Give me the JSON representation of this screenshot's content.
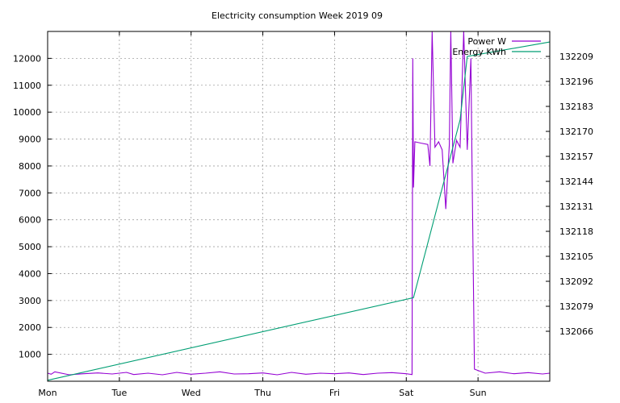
{
  "chart_data": {
    "type": "line",
    "title": "Electricity consumption Week 2019 09",
    "x_ticks": [
      "Mon",
      "Tue",
      "Wed",
      "Thu",
      "Fri",
      "Sat",
      "Sun"
    ],
    "xlim_days": [
      0,
      7
    ],
    "y_left": {
      "ticks": [
        1000,
        2000,
        3000,
        4000,
        5000,
        6000,
        7000,
        8000,
        9000,
        10000,
        11000,
        12000
      ],
      "ylim": [
        0,
        13000
      ]
    },
    "y_right": {
      "ticks": [
        132066,
        132079,
        132092,
        132105,
        132118,
        132131,
        132144,
        132157,
        132170,
        132183,
        132196,
        132209
      ],
      "ylim": [
        132040,
        132222
      ]
    },
    "grid": true,
    "legend_position": "top-right",
    "series": [
      {
        "name": "Power W",
        "axis": "left",
        "color": "#9400d3",
        "x": [
          0.0,
          0.05,
          0.1,
          0.3,
          0.5,
          0.7,
          0.9,
          1.1,
          1.2,
          1.4,
          1.6,
          1.8,
          2.0,
          2.2,
          2.4,
          2.6,
          2.8,
          3.0,
          3.2,
          3.4,
          3.6,
          3.8,
          4.0,
          4.2,
          4.4,
          4.6,
          4.8,
          5.0,
          5.08,
          5.09,
          5.1,
          5.12,
          5.2,
          5.3,
          5.33,
          5.36,
          5.4,
          5.45,
          5.5,
          5.55,
          5.6,
          5.62,
          5.65,
          5.7,
          5.75,
          5.8,
          5.85,
          5.9,
          5.92,
          5.95,
          6.1,
          6.3,
          6.5,
          6.7,
          6.9,
          7.0
        ],
        "y": [
          300,
          260,
          350,
          240,
          280,
          310,
          270,
          330,
          250,
          300,
          240,
          330,
          260,
          300,
          350,
          270,
          280,
          310,
          240,
          330,
          260,
          300,
          280,
          310,
          250,
          300,
          320,
          280,
          250,
          12000,
          7200,
          8900,
          8850,
          8800,
          8000,
          13000,
          8700,
          8900,
          8600,
          6400,
          8800,
          13000,
          8100,
          8950,
          8700,
          13000,
          8600,
          12000,
          7200,
          450,
          300,
          350,
          280,
          320,
          270,
          300
        ]
      },
      {
        "name": "Energy KWh",
        "axis": "right",
        "color": "#009e73",
        "x": [
          0.0,
          5.1,
          5.75,
          5.85,
          7.0
        ],
        "y": [
          132040.5,
          132083.5,
          132176.0,
          132209.0,
          132216.5
        ]
      }
    ]
  }
}
